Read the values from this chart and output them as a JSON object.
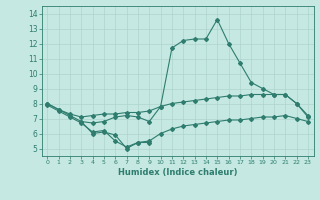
{
  "line1_x": [
    0,
    1,
    2,
    3,
    4,
    5,
    6,
    7,
    8,
    9,
    10,
    11,
    12,
    13,
    14,
    15,
    16,
    17,
    18,
    19,
    20,
    21,
    22,
    23
  ],
  "line1_y": [
    8.0,
    7.6,
    7.2,
    6.8,
    6.7,
    6.8,
    7.1,
    7.2,
    7.1,
    6.8,
    7.8,
    11.7,
    12.2,
    12.3,
    12.3,
    13.6,
    12.0,
    10.7,
    9.4,
    9.0,
    8.6,
    8.6,
    8.0,
    7.1
  ],
  "line2_x": [
    0,
    1,
    2,
    3,
    4,
    5,
    6,
    7,
    8,
    9,
    10,
    11,
    12,
    13,
    14,
    15,
    16,
    17,
    18,
    19,
    20,
    21,
    22,
    23
  ],
  "line2_y": [
    8.0,
    7.6,
    7.3,
    7.1,
    7.2,
    7.3,
    7.3,
    7.4,
    7.4,
    7.5,
    7.8,
    8.0,
    8.1,
    8.2,
    8.3,
    8.4,
    8.5,
    8.5,
    8.6,
    8.6,
    8.6,
    8.6,
    8.0,
    7.2
  ],
  "line3_x": [
    0,
    1,
    2,
    3,
    4,
    5,
    6,
    7,
    8,
    9,
    10,
    11,
    12,
    13,
    14,
    15,
    16,
    17,
    18,
    19,
    20,
    21,
    22,
    23
  ],
  "line3_y": [
    7.9,
    7.5,
    7.1,
    6.7,
    6.1,
    6.2,
    5.5,
    5.1,
    5.4,
    5.5,
    6.0,
    6.3,
    6.5,
    6.6,
    6.7,
    6.8,
    6.9,
    6.9,
    7.0,
    7.1,
    7.1,
    7.2,
    7.0,
    6.8
  ],
  "line4_x": [
    3,
    4,
    5,
    6,
    7,
    8,
    9
  ],
  "line4_y": [
    6.8,
    6.0,
    6.1,
    5.9,
    5.0,
    5.4,
    5.4
  ],
  "color": "#2e7d6e",
  "bg_color": "#c5e8e2",
  "grid_color": "#afd4ce",
  "xlabel": "Humidex (Indice chaleur)",
  "ylim": [
    4.5,
    14.5
  ],
  "xlim": [
    -0.5,
    23.5
  ],
  "yticks": [
    5,
    6,
    7,
    8,
    9,
    10,
    11,
    12,
    13,
    14
  ],
  "xticks": [
    0,
    1,
    2,
    3,
    4,
    5,
    6,
    7,
    8,
    9,
    10,
    11,
    12,
    13,
    14,
    15,
    16,
    17,
    18,
    19,
    20,
    21,
    22,
    23
  ]
}
